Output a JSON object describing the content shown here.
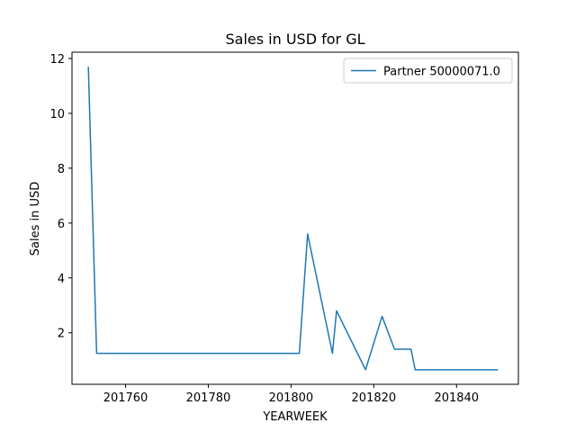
{
  "chart_data": {
    "type": "line",
    "title": "Sales in USD for GL",
    "xlabel": "YEARWEEK",
    "ylabel": "Sales in USD",
    "xlim": [
      201747.05,
      201854.95
    ],
    "ylim": [
      0.12,
      12.23
    ],
    "xticks": [
      201760,
      201780,
      201800,
      201820,
      201840
    ],
    "yticks": [
      2,
      4,
      6,
      8,
      10,
      12
    ],
    "grid": false,
    "legend_position": "top-right",
    "series": [
      {
        "name": "Partner 50000071.0",
        "color": "#1f77b4",
        "x": [
          201751,
          201753,
          201802,
          201804,
          201810,
          201811,
          201818,
          201822,
          201825,
          201829,
          201830,
          201850
        ],
        "y": [
          11.7,
          1.25,
          1.25,
          5.6,
          1.25,
          2.8,
          0.65,
          2.6,
          1.4,
          1.4,
          0.65,
          0.65
        ]
      }
    ]
  }
}
